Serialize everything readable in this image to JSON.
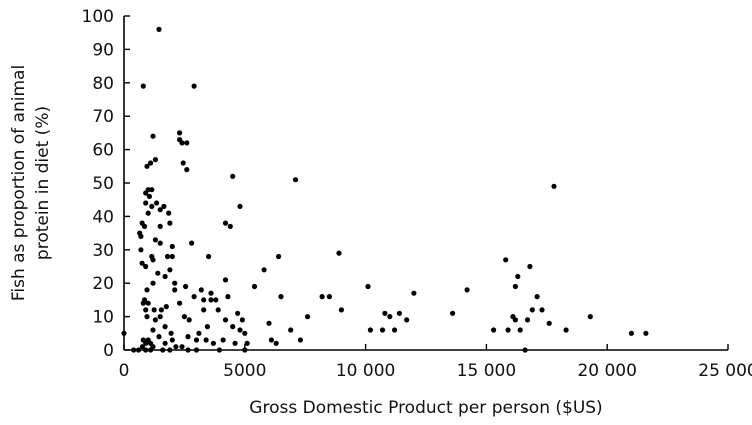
{
  "chart_data": {
    "type": "scatter",
    "xlabel": "Gross Domestic Product per person ($US)",
    "ylabel_lines": [
      "Fish as proportion of animal",
      "protein in diet (%)"
    ],
    "xlim": [
      0,
      25000
    ],
    "ylim": [
      0,
      100
    ],
    "x_ticks": [
      0,
      5000,
      10000,
      15000,
      20000,
      25000
    ],
    "x_tick_labels": [
      "0",
      "5000",
      "10 000",
      "15 000",
      "20 000",
      "25 000"
    ],
    "y_ticks": [
      0,
      10,
      20,
      30,
      40,
      50,
      60,
      70,
      80,
      90,
      100
    ],
    "y_tick_labels": [
      "0",
      "10",
      "20",
      "30",
      "40",
      "50",
      "60",
      "70",
      "80",
      "90",
      "100"
    ],
    "grid": false,
    "points": [
      [
        0,
        5
      ],
      [
        400,
        0
      ],
      [
        600,
        0
      ],
      [
        650,
        35
      ],
      [
        700,
        30
      ],
      [
        700,
        34
      ],
      [
        750,
        38
      ],
      [
        750,
        26
      ],
      [
        760,
        1
      ],
      [
        800,
        3
      ],
      [
        800,
        79
      ],
      [
        800,
        14
      ],
      [
        850,
        15
      ],
      [
        850,
        37
      ],
      [
        900,
        47
      ],
      [
        900,
        44
      ],
      [
        900,
        25
      ],
      [
        900,
        12
      ],
      [
        900,
        2
      ],
      [
        900,
        0
      ],
      [
        950,
        55
      ],
      [
        950,
        10
      ],
      [
        950,
        18
      ],
      [
        1000,
        48
      ],
      [
        1000,
        41
      ],
      [
        1000,
        14
      ],
      [
        1000,
        3
      ],
      [
        1050,
        46
      ],
      [
        1100,
        56
      ],
      [
        1100,
        0
      ],
      [
        1100,
        2
      ],
      [
        1150,
        48
      ],
      [
        1150,
        43
      ],
      [
        1150,
        28
      ],
      [
        1200,
        64
      ],
      [
        1200,
        27
      ],
      [
        1200,
        6
      ],
      [
        1200,
        1
      ],
      [
        1200,
        20
      ],
      [
        1250,
        12
      ],
      [
        1300,
        57
      ],
      [
        1300,
        9
      ],
      [
        1300,
        33
      ],
      [
        1350,
        44
      ],
      [
        1400,
        23
      ],
      [
        1450,
        96
      ],
      [
        1450,
        4
      ],
      [
        1500,
        37
      ],
      [
        1500,
        42
      ],
      [
        1500,
        32
      ],
      [
        1500,
        10
      ],
      [
        1550,
        12
      ],
      [
        1600,
        0
      ],
      [
        1650,
        43
      ],
      [
        1700,
        2
      ],
      [
        1700,
        22
      ],
      [
        1750,
        13
      ],
      [
        1700,
        7
      ],
      [
        1800,
        28
      ],
      [
        1850,
        41
      ],
      [
        1900,
        38
      ],
      [
        1900,
        0
      ],
      [
        1900,
        24
      ],
      [
        1950,
        5
      ],
      [
        2000,
        3
      ],
      [
        2000,
        31
      ],
      [
        2000,
        28
      ],
      [
        2100,
        18
      ],
      [
        2100,
        20
      ],
      [
        2150,
        1
      ],
      [
        2300,
        65
      ],
      [
        2300,
        63
      ],
      [
        2300,
        14
      ],
      [
        2400,
        62
      ],
      [
        2400,
        1
      ],
      [
        2450,
        56
      ],
      [
        2500,
        10
      ],
      [
        2550,
        19
      ],
      [
        2600,
        54
      ],
      [
        2600,
        62
      ],
      [
        2650,
        0
      ],
      [
        2650,
        4
      ],
      [
        2700,
        9
      ],
      [
        2800,
        32
      ],
      [
        2900,
        79
      ],
      [
        2900,
        16
      ],
      [
        3000,
        0
      ],
      [
        3000,
        3
      ],
      [
        3100,
        5
      ],
      [
        3200,
        18
      ],
      [
        3300,
        15
      ],
      [
        3300,
        12
      ],
      [
        3400,
        3
      ],
      [
        3450,
        7
      ],
      [
        3500,
        28
      ],
      [
        3600,
        15
      ],
      [
        3600,
        17
      ],
      [
        3700,
        2
      ],
      [
        3800,
        15
      ],
      [
        3900,
        12
      ],
      [
        3950,
        0
      ],
      [
        4100,
        3
      ],
      [
        4200,
        9
      ],
      [
        4200,
        21
      ],
      [
        4200,
        38
      ],
      [
        4300,
        16
      ],
      [
        4400,
        37
      ],
      [
        4500,
        52
      ],
      [
        4500,
        7
      ],
      [
        4600,
        2
      ],
      [
        4700,
        11
      ],
      [
        4800,
        43
      ],
      [
        4800,
        6
      ],
      [
        4900,
        9
      ],
      [
        5000,
        5
      ],
      [
        5000,
        0
      ],
      [
        5100,
        2
      ],
      [
        5400,
        19
      ],
      [
        5800,
        24
      ],
      [
        6000,
        8
      ],
      [
        6100,
        3
      ],
      [
        6300,
        2
      ],
      [
        6400,
        28
      ],
      [
        6500,
        16
      ],
      [
        6900,
        6
      ],
      [
        7100,
        51
      ],
      [
        7300,
        3
      ],
      [
        7600,
        10
      ],
      [
        8200,
        16
      ],
      [
        8500,
        16
      ],
      [
        8900,
        29
      ],
      [
        9000,
        12
      ],
      [
        10100,
        19
      ],
      [
        10200,
        6
      ],
      [
        10700,
        6
      ],
      [
        10800,
        11
      ],
      [
        11000,
        10
      ],
      [
        11200,
        6
      ],
      [
        11400,
        11
      ],
      [
        11700,
        9
      ],
      [
        12000,
        17
      ],
      [
        13600,
        11
      ],
      [
        14200,
        18
      ],
      [
        15300,
        6
      ],
      [
        15800,
        27
      ],
      [
        15900,
        6
      ],
      [
        16100,
        10
      ],
      [
        16200,
        19
      ],
      [
        16200,
        9
      ],
      [
        16300,
        22
      ],
      [
        16400,
        6
      ],
      [
        16600,
        0
      ],
      [
        16700,
        9
      ],
      [
        16800,
        25
      ],
      [
        16900,
        12
      ],
      [
        17100,
        16
      ],
      [
        17300,
        12
      ],
      [
        17600,
        8
      ],
      [
        17800,
        49
      ],
      [
        18300,
        6
      ],
      [
        19300,
        10
      ],
      [
        21000,
        5
      ],
      [
        21600,
        5
      ]
    ]
  }
}
